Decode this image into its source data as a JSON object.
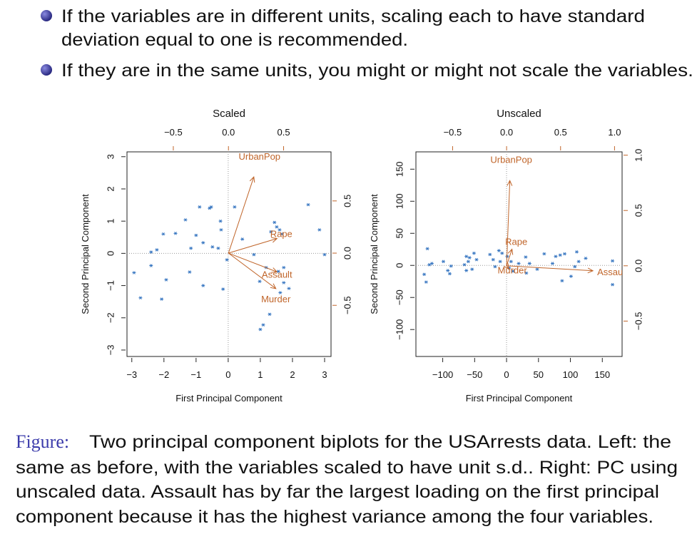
{
  "bullets": [
    [
      "If the variables are in different units, scaling each to have standard",
      "deviation equal to one is recommended."
    ],
    [
      "If they are in the same units, you might or might not scale the variables."
    ]
  ],
  "chart_data": [
    {
      "type": "scatter",
      "title": "Scaled",
      "xlabel": "First Principal Component",
      "ylabel": "Second Principal Component",
      "xlim": [
        -3.15,
        3.2
      ],
      "ylim": [
        -3.2,
        3.15
      ],
      "xticks": [
        {
          "value": -3,
          "label": "−3"
        },
        {
          "value": -2,
          "label": "−2"
        },
        {
          "value": -1,
          "label": "−1"
        },
        0,
        1,
        2,
        3
      ],
      "yticks": [
        {
          "value": -3,
          "label": "−3"
        },
        {
          "value": -2,
          "label": "−2"
        },
        {
          "value": -1,
          "label": "−1"
        },
        0,
        1,
        2,
        3
      ],
      "x2lim": [
        -0.92,
        0.93
      ],
      "x2ticks": [
        {
          "value": -0.5,
          "label": "−0.5"
        },
        {
          "value": 0,
          "label": "0.0"
        },
        0.5
      ],
      "y2lim": [
        -0.99,
        0.97
      ],
      "y2ticks": [
        {
          "value": -0.5,
          "label": "−0.5"
        },
        {
          "value": 0,
          "label": "0.0"
        },
        0.5
      ],
      "point_color": "#3a78c2",
      "loading_color": "#c0652a",
      "points": {
        "x": [
          -2.93,
          -2.73,
          -2.02,
          -1.64,
          -2.4,
          -2.22,
          -2.4,
          -1.93,
          -2.07,
          -1.33,
          -1.2,
          -1.16,
          -1.0,
          -0.89,
          -0.78,
          -0.78,
          -0.58,
          -0.53,
          -0.49,
          -0.24,
          -0.22,
          -0.31,
          -0.16,
          -0.04,
          0.2,
          0.44,
          0.8,
          0.98,
          1.18,
          1.0,
          1.09,
          1.29,
          1.33,
          1.44,
          1.51,
          1.6,
          1.67,
          1.73,
          1.62,
          1.89,
          1.73,
          1.56,
          2.49,
          2.84,
          3.0
        ],
        "y": [
          -0.6,
          -1.38,
          0.6,
          0.62,
          0.04,
          0.11,
          -0.38,
          -0.82,
          -1.42,
          1.04,
          -0.58,
          0.16,
          0.56,
          1.44,
          -1.0,
          0.33,
          1.4,
          1.44,
          0.2,
          1.0,
          0.73,
          0.16,
          -1.11,
          -0.2,
          1.44,
          0.44,
          -0.04,
          -0.87,
          -0.44,
          -2.36,
          -2.22,
          -1.89,
          0.67,
          0.96,
          0.82,
          0.73,
          0.6,
          -0.44,
          -1.22,
          -1.09,
          -0.91,
          -0.56,
          1.51,
          0.73,
          -0.04
        ]
      },
      "loadings": [
        {
          "name": "UrbanPop",
          "x": 0.23,
          "y": 0.73
        },
        {
          "name": "Rape",
          "x": 0.44,
          "y": 0.14
        },
        {
          "name": "Assault",
          "x": 0.44,
          "y": -0.18
        },
        {
          "name": "Murder",
          "x": 0.43,
          "y": -0.34
        }
      ]
    },
    {
      "type": "scatter",
      "title": "Unscaled",
      "xlabel": "First Principal Component",
      "ylabel": "Second Principal Component",
      "xlim": [
        -142,
        181
      ],
      "ylim": [
        -142,
        177
      ],
      "xticks": [
        {
          "value": -100,
          "label": "−100"
        },
        {
          "value": -50,
          "label": "−50"
        },
        0,
        50,
        100,
        150
      ],
      "yticks": [
        {
          "value": -100,
          "label": "−100"
        },
        {
          "value": -50,
          "label": "−50"
        },
        0,
        50,
        100,
        150
      ],
      "x2lim": [
        -0.84,
        1.07
      ],
      "x2ticks": [
        {
          "value": -0.5,
          "label": "−0.5"
        },
        {
          "value": 0,
          "label": "0.0"
        },
        0.5,
        {
          "value": 1,
          "label": "1.0"
        }
      ],
      "y2lim": [
        -0.82,
        1.03
      ],
      "y2ticks": [
        {
          "value": -0.5,
          "label": "−0.5"
        },
        {
          "value": 0,
          "label": "0.0"
        },
        0.5,
        {
          "value": 1,
          "label": "1.0"
        }
      ],
      "point_color": "#3a78c2",
      "loading_color": "#c0652a",
      "points": {
        "x": [
          -124,
          -121,
          -129,
          -126,
          -117,
          -99,
          -92,
          -89,
          -87,
          -63,
          -60,
          -66,
          -58,
          -54,
          -51,
          -47,
          -63,
          -26,
          -21,
          -18,
          -12,
          -10,
          -7,
          1,
          4,
          7,
          10,
          19,
          30,
          36,
          31,
          48,
          59,
          72,
          77,
          84,
          87,
          91,
          101,
          107,
          110,
          113,
          124,
          166,
          166
        ],
        "y": [
          26,
          1,
          -14,
          -26,
          3,
          6,
          -8,
          -13,
          -1,
          14,
          6,
          1,
          12,
          -6,
          19,
          9,
          -8,
          17,
          9,
          -2,
          23,
          6,
          19,
          14,
          -4,
          6,
          -9,
          3,
          13,
          3,
          -12,
          -6,
          18,
          3,
          14,
          16,
          -24,
          18,
          -17,
          -2,
          21,
          6,
          11,
          7,
          -30
        ]
      },
      "loadings": [
        {
          "name": "UrbanPop",
          "x": 0.03,
          "y": 0.77
        },
        {
          "name": "Rape",
          "x": 0.05,
          "y": 0.15
        },
        {
          "name": "Murder",
          "x": 0.02,
          "y": -0.03
        },
        {
          "name": "Assault",
          "x": 0.8,
          "y": -0.045
        }
      ]
    }
  ],
  "caption": {
    "label": "Figure:",
    "lines": [
      "Two principal component biplots for the USArrests data. Left: the",
      "same as before, with the variables scaled to have unit s.d.. Right: PC using",
      "unscaled data. Assault has by far the largest loading on the first principal",
      "component because it has the highest variance among the four variables."
    ]
  }
}
